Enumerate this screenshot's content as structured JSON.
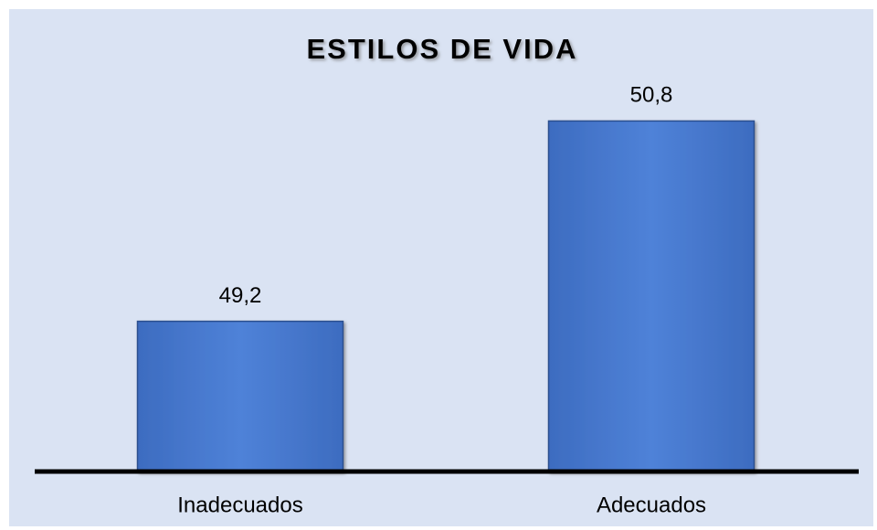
{
  "chart_data": {
    "type": "bar",
    "title": "ESTILOS DE VIDA",
    "categories": [
      "Inadecuados",
      "Adecuados"
    ],
    "values": [
      49.2,
      50.8
    ],
    "value_labels": [
      "49,2",
      "50,8"
    ],
    "color": "#4a7bd0",
    "ylim": [
      48,
      51
    ],
    "grid": false
  }
}
